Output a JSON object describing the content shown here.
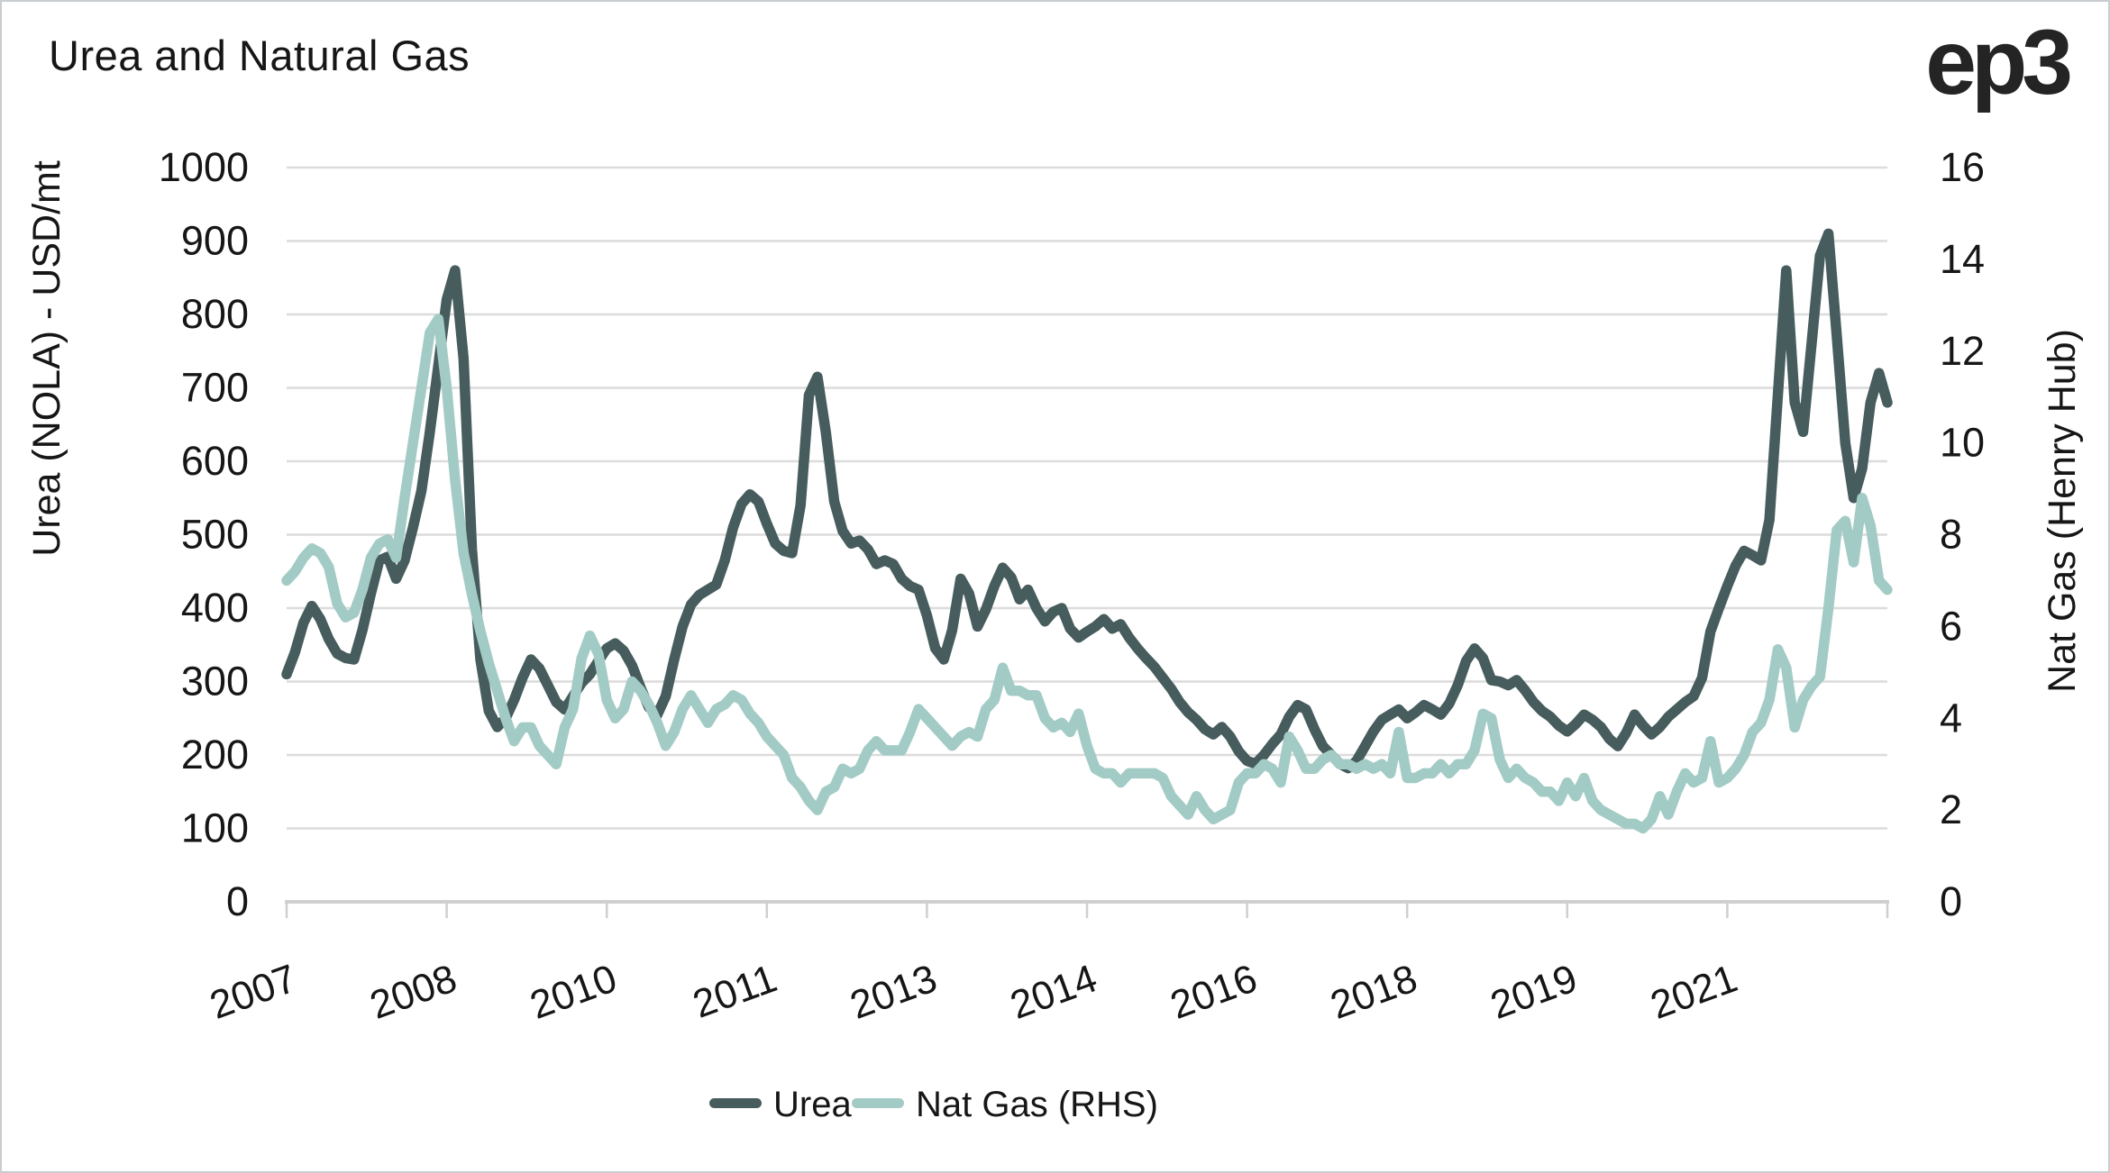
{
  "chart_data": {
    "type": "line",
    "title": "Urea and Natural Gas",
    "brand_logo": "ep3",
    "grid": "horizontal",
    "x_axis": {
      "unit": "month",
      "start": "2007-01",
      "end": "2022-11",
      "tick_every_months": 19,
      "tick_labels": [
        "2007",
        "2008",
        "2010",
        "2011",
        "2013",
        "2014",
        "2016",
        "2018",
        "2019",
        "2021"
      ]
    },
    "y_left": {
      "label": "Urea (NOLA) - USD/mt",
      "min": 0,
      "max": 1000,
      "tick_step": 100,
      "tick_labels": [
        "1000",
        "900",
        "800",
        "700",
        "600",
        "500",
        "400",
        "300",
        "200",
        "100",
        "0"
      ]
    },
    "y_right": {
      "label": "Nat Gas (Henry Hub)",
      "min": 0,
      "max": 16,
      "tick_step": 2,
      "tick_labels": [
        "16",
        "14",
        "12",
        "10",
        "8",
        "6",
        "4",
        "2",
        "0"
      ]
    },
    "legend": {
      "position": "bottom",
      "entries": [
        "Urea",
        "Nat Gas (RHS)"
      ]
    },
    "colors": {
      "urea": "#475c5d",
      "nat_gas": "#a3cbc5",
      "gridline": "#dcdcdc",
      "axis_line": "#cfcfcf",
      "text": "#161616"
    },
    "series": [
      {
        "name": "Urea",
        "axis": "left",
        "color": "#475c5d",
        "values": [
          310,
          340,
          380,
          403,
          385,
          358,
          338,
          332,
          330,
          370,
          420,
          465,
          470,
          440,
          465,
          510,
          560,
          640,
          730,
          820,
          860,
          740,
          480,
          330,
          260,
          238,
          250,
          275,
          305,
          330,
          318,
          295,
          272,
          262,
          280,
          298,
          310,
          328,
          345,
          352,
          342,
          322,
          292,
          265,
          255,
          280,
          330,
          375,
          405,
          418,
          425,
          432,
          465,
          510,
          542,
          555,
          545,
          515,
          488,
          478,
          475,
          540,
          690,
          715,
          640,
          545,
          505,
          488,
          492,
          480,
          460,
          465,
          460,
          440,
          430,
          425,
          390,
          345,
          330,
          370,
          440,
          420,
          375,
          398,
          430,
          455,
          442,
          412,
          425,
          400,
          382,
          395,
          400,
          372,
          360,
          368,
          375,
          385,
          372,
          378,
          360,
          345,
          332,
          320,
          305,
          290,
          272,
          258,
          248,
          235,
          228,
          238,
          225,
          205,
          192,
          188,
          200,
          215,
          228,
          252,
          268,
          262,
          235,
          212,
          200,
          188,
          182,
          192,
          212,
          232,
          248,
          255,
          262,
          250,
          258,
          268,
          262,
          255,
          270,
          295,
          328,
          345,
          332,
          302,
          300,
          295,
          302,
          288,
          272,
          260,
          252,
          240,
          232,
          242,
          255,
          248,
          238,
          222,
          212,
          230,
          255,
          240,
          228,
          238,
          252,
          262,
          272,
          280,
          305,
          368,
          400,
          430,
          458,
          478,
          472,
          465,
          520,
          690,
          860,
          680,
          640,
          760,
          880,
          910,
          770,
          625,
          550,
          590,
          680,
          720,
          680
        ]
      },
      {
        "name": "Nat Gas (RHS)",
        "axis": "right",
        "color": "#a3cbc5",
        "values": [
          7.0,
          7.2,
          7.5,
          7.7,
          7.6,
          7.3,
          6.5,
          6.2,
          6.3,
          6.8,
          7.5,
          7.8,
          7.9,
          7.5,
          8.8,
          10.0,
          11.2,
          12.4,
          12.7,
          11.2,
          9.2,
          7.6,
          6.7,
          5.9,
          5.2,
          4.6,
          4.0,
          3.5,
          3.8,
          3.8,
          3.4,
          3.2,
          3.0,
          3.8,
          4.2,
          5.3,
          5.8,
          5.4,
          4.4,
          4.0,
          4.2,
          4.8,
          4.6,
          4.3,
          3.9,
          3.4,
          3.7,
          4.2,
          4.5,
          4.2,
          3.9,
          4.2,
          4.3,
          4.5,
          4.4,
          4.1,
          3.9,
          3.6,
          3.4,
          3.2,
          2.7,
          2.5,
          2.2,
          2.0,
          2.4,
          2.5,
          2.9,
          2.8,
          2.9,
          3.3,
          3.5,
          3.3,
          3.3,
          3.3,
          3.7,
          4.2,
          4.0,
          3.8,
          3.6,
          3.4,
          3.6,
          3.7,
          3.6,
          4.2,
          4.4,
          5.1,
          4.6,
          4.6,
          4.5,
          4.5,
          4.0,
          3.8,
          3.9,
          3.7,
          4.1,
          3.4,
          2.9,
          2.8,
          2.8,
          2.6,
          2.8,
          2.8,
          2.8,
          2.8,
          2.7,
          2.3,
          2.1,
          1.9,
          2.3,
          2.0,
          1.8,
          1.9,
          2.0,
          2.6,
          2.8,
          2.8,
          3.0,
          2.9,
          2.6,
          3.6,
          3.3,
          2.9,
          2.9,
          3.1,
          3.2,
          3.0,
          3.0,
          2.9,
          3.0,
          2.9,
          3.0,
          2.8,
          3.7,
          2.7,
          2.7,
          2.8,
          2.8,
          3.0,
          2.8,
          3.0,
          3.0,
          3.3,
          4.1,
          4.0,
          3.1,
          2.7,
          2.9,
          2.7,
          2.6,
          2.4,
          2.4,
          2.2,
          2.6,
          2.3,
          2.7,
          2.2,
          2.0,
          1.9,
          1.8,
          1.7,
          1.7,
          1.6,
          1.8,
          2.3,
          1.9,
          2.4,
          2.8,
          2.6,
          2.7,
          3.5,
          2.6,
          2.7,
          2.9,
          3.2,
          3.7,
          3.9,
          4.4,
          5.5,
          5.1,
          3.8,
          4.4,
          4.7,
          4.9,
          6.4,
          8.1,
          8.3,
          7.4,
          8.8,
          8.2,
          7.0,
          6.8
        ]
      }
    ]
  }
}
